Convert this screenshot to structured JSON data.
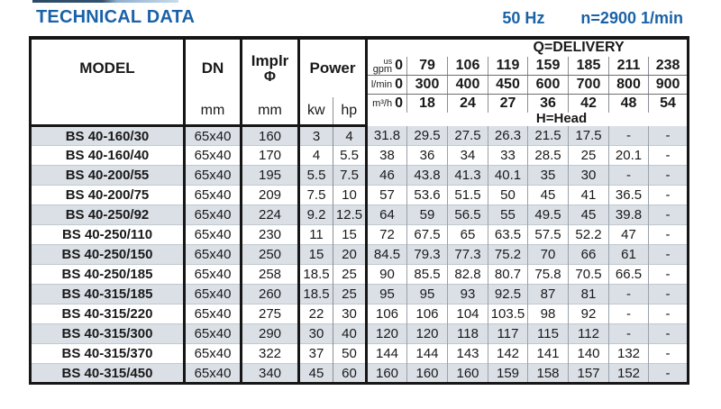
{
  "header": {
    "title": "TECHNICAL DATA",
    "frequency": "50 Hz",
    "speed": "n=2900 1/min"
  },
  "colors": {
    "accent_blue": "#1a62a7",
    "row_alt": "#dbe0e7"
  },
  "table": {
    "headers": {
      "model": "MODEL",
      "dn": "DN",
      "dn_unit": "mm",
      "impeller": "Implr",
      "impeller_symbol": "Φ",
      "impeller_unit": "mm",
      "power": "Power",
      "power_unit_kw": "kw",
      "power_unit_hp": "hp",
      "delivery_title": "Q=DELIVERY",
      "head_title": "H=Head",
      "delivery_rows": [
        {
          "key": "us-gpm",
          "unit_top": "us",
          "unit": "gpm",
          "zero": "0",
          "values": [
            "79",
            "106",
            "119",
            "159",
            "185",
            "211",
            "238"
          ]
        },
        {
          "key": "l-min",
          "unit": "l/min",
          "zero": "0",
          "values": [
            "300",
            "400",
            "450",
            "600",
            "700",
            "800",
            "900"
          ]
        },
        {
          "key": "m3-h",
          "unit": "m³/h",
          "zero": "0",
          "values": [
            "18",
            "24",
            "27",
            "36",
            "42",
            "48",
            "54"
          ]
        }
      ]
    },
    "rows": [
      {
        "model": "BS 40-160/30",
        "dn": "65x40",
        "impeller": "160",
        "kw": "3",
        "hp": "4",
        "head": [
          "31.8",
          "29.5",
          "27.5",
          "26.3",
          "21.5",
          "17.5",
          "-",
          "-"
        ]
      },
      {
        "model": "BS 40-160/40",
        "dn": "65x40",
        "impeller": "170",
        "kw": "4",
        "hp": "5.5",
        "head": [
          "38",
          "36",
          "34",
          "33",
          "28.5",
          "25",
          "20.1",
          "-"
        ]
      },
      {
        "model": "BS 40-200/55",
        "dn": "65x40",
        "impeller": "195",
        "kw": "5.5",
        "hp": "7.5",
        "head": [
          "46",
          "43.8",
          "41.3",
          "40.1",
          "35",
          "30",
          "-",
          "-"
        ]
      },
      {
        "model": "BS 40-200/75",
        "dn": "65x40",
        "impeller": "209",
        "kw": "7.5",
        "hp": "10",
        "head": [
          "57",
          "53.6",
          "51.5",
          "50",
          "45",
          "41",
          "36.5",
          "-"
        ]
      },
      {
        "model": "BS 40-250/92",
        "dn": "65x40",
        "impeller": "224",
        "kw": "9.2",
        "hp": "12.5",
        "head": [
          "64",
          "59",
          "56.5",
          "55",
          "49.5",
          "45",
          "39.8",
          "-"
        ]
      },
      {
        "model": "BS 40-250/110",
        "dn": "65x40",
        "impeller": "230",
        "kw": "11",
        "hp": "15",
        "head": [
          "72",
          "67.5",
          "65",
          "63.5",
          "57.5",
          "52.2",
          "47",
          "-"
        ]
      },
      {
        "model": "BS 40-250/150",
        "dn": "65x40",
        "impeller": "250",
        "kw": "15",
        "hp": "20",
        "head": [
          "84.5",
          "79.3",
          "77.3",
          "75.2",
          "70",
          "66",
          "61",
          "-"
        ]
      },
      {
        "model": "BS 40-250/185",
        "dn": "65x40",
        "impeller": "258",
        "kw": "18.5",
        "hp": "25",
        "head": [
          "90",
          "85.5",
          "82.8",
          "80.7",
          "75.8",
          "70.5",
          "66.5",
          "-"
        ]
      },
      {
        "model": "BS 40-315/185",
        "dn": "65x40",
        "impeller": "260",
        "kw": "18.5",
        "hp": "25",
        "head": [
          "95",
          "95",
          "93",
          "92.5",
          "87",
          "81",
          "-",
          "-"
        ]
      },
      {
        "model": "BS 40-315/220",
        "dn": "65x40",
        "impeller": "275",
        "kw": "22",
        "hp": "30",
        "head": [
          "106",
          "106",
          "104",
          "103.5",
          "98",
          "92",
          "-",
          "-"
        ]
      },
      {
        "model": "BS 40-315/300",
        "dn": "65x40",
        "impeller": "290",
        "kw": "30",
        "hp": "40",
        "head": [
          "120",
          "120",
          "118",
          "117",
          "115",
          "112",
          "-",
          "-"
        ]
      },
      {
        "model": "BS 40-315/370",
        "dn": "65x40",
        "impeller": "322",
        "kw": "37",
        "hp": "50",
        "head": [
          "144",
          "144",
          "143",
          "142",
          "141",
          "140",
          "132",
          "-"
        ]
      },
      {
        "model": "BS 40-315/450",
        "dn": "65x40",
        "impeller": "340",
        "kw": "45",
        "hp": "60",
        "head": [
          "160",
          "160",
          "160",
          "159",
          "158",
          "157",
          "152",
          "-"
        ]
      }
    ]
  }
}
